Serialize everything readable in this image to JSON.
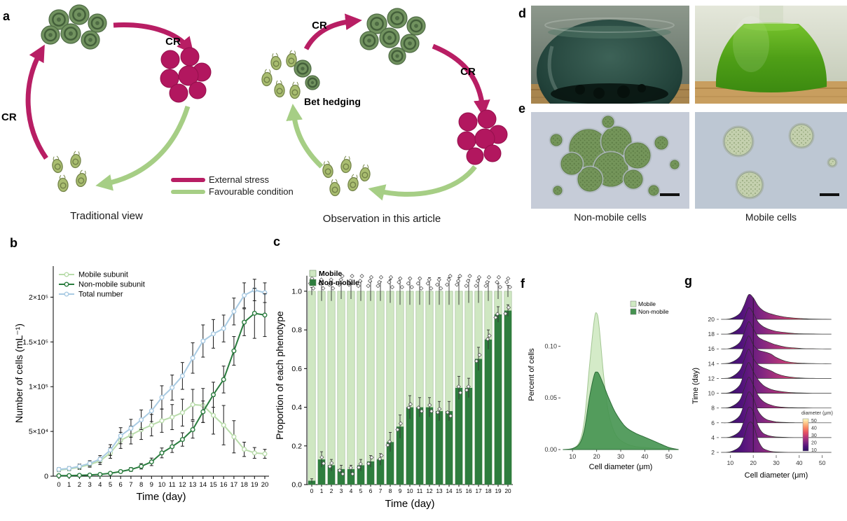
{
  "panels": {
    "a": {
      "label": "a",
      "cr": "CR",
      "bet_hedging": "Bet hedging",
      "legend": {
        "external_stress": {
          "label": "External stress",
          "color": "#b81e64"
        },
        "favourable": {
          "label": "Favourable condition",
          "color": "#a6ce85"
        }
      },
      "captions": {
        "left": "Traditional view",
        "right": "Observation in this article"
      }
    },
    "b": {
      "label": "b"
    },
    "c": {
      "label": "c"
    },
    "d": {
      "label": "d"
    },
    "e": {
      "label": "e",
      "caption_left": "Non-mobile cells",
      "caption_right": "Mobile cells"
    },
    "f": {
      "label": "f"
    },
    "g": {
      "label": "g"
    }
  },
  "chart_data": [
    {
      "id": "b",
      "type": "line",
      "xlabel": "Time (day)",
      "ylabel": "Number of cells (mL⁻¹)",
      "x": [
        0,
        1,
        2,
        3,
        4,
        5,
        6,
        7,
        8,
        9,
        10,
        11,
        12,
        13,
        14,
        15,
        16,
        17,
        18,
        19,
        20
      ],
      "ylim": [
        0,
        230000
      ],
      "yticks": [
        0,
        50000,
        100000,
        150000,
        200000
      ],
      "ytick_labels": [
        "0",
        "5×10⁴",
        "1×10⁵",
        "1.5×10⁵",
        "2×10⁵"
      ],
      "legend_position": "top-left",
      "series": [
        {
          "name": "Mobile subunit",
          "color": "#b9dcab",
          "values": [
            7000,
            8000,
            10000,
            13000,
            17000,
            26000,
            40000,
            46000,
            52000,
            57000,
            62000,
            66000,
            71000,
            80000,
            79000,
            68000,
            57000,
            44000,
            30000,
            26000,
            25000
          ],
          "errors": [
            2000,
            2000,
            2500,
            3000,
            4000,
            6000,
            9000,
            10000,
            11000,
            12000,
            13000,
            14000,
            15000,
            17000,
            19000,
            21000,
            22000,
            18000,
            8000,
            6000,
            5000
          ]
        },
        {
          "name": "Non-mobile subunit",
          "color": "#2a7c3e",
          "values": [
            600,
            700,
            1000,
            1300,
            2000,
            3200,
            5200,
            7500,
            11000,
            16000,
            26000,
            33000,
            41000,
            52000,
            72000,
            91000,
            108000,
            140000,
            172000,
            182000,
            180000
          ],
          "errors": [
            300,
            300,
            400,
            500,
            700,
            1000,
            1600,
            2200,
            3000,
            4200,
            5500,
            6500,
            7500,
            9500,
            12000,
            14000,
            15000,
            16000,
            15000,
            28000,
            24000
          ]
        },
        {
          "name": "Total number",
          "color": "#a9cbe3",
          "values": [
            7600,
            8700,
            11000,
            14300,
            19000,
            29200,
            45200,
            53500,
            63000,
            73000,
            88000,
            99000,
            112000,
            132000,
            151000,
            159000,
            165000,
            184000,
            202000,
            208000,
            205000
          ],
          "errors": [
            2000,
            2000,
            2500,
            3000,
            4000,
            6000,
            9000,
            10000,
            11000,
            12000,
            13000,
            14000,
            15000,
            17000,
            18000,
            16000,
            15000,
            15000,
            14000,
            12000,
            11000
          ]
        }
      ]
    },
    {
      "id": "c",
      "type": "stacked_bar",
      "xlabel": "Time (day)",
      "ylabel": "Proportion of each phenotype",
      "categories": [
        0,
        1,
        2,
        3,
        4,
        5,
        6,
        7,
        8,
        9,
        10,
        11,
        12,
        13,
        14,
        15,
        16,
        17,
        18,
        19,
        20
      ],
      "yticks": [
        0,
        0.2,
        0.4,
        0.6,
        0.8,
        1.0
      ],
      "ytick_labels": [
        "0.0",
        "0.2",
        "0.4",
        "0.6",
        "0.8",
        "1.0"
      ],
      "series": [
        {
          "name": "Mobile",
          "color": "#cfe7c2"
        },
        {
          "name": "Non-mobile",
          "color": "#2e7d3e"
        }
      ],
      "non_mobile_proportion": [
        0.02,
        0.13,
        0.1,
        0.08,
        0.08,
        0.1,
        0.12,
        0.13,
        0.22,
        0.3,
        0.4,
        0.4,
        0.4,
        0.38,
        0.38,
        0.5,
        0.5,
        0.65,
        0.75,
        0.88,
        0.9
      ],
      "boundary_errors": [
        0.01,
        0.04,
        0.03,
        0.02,
        0.02,
        0.03,
        0.03,
        0.03,
        0.05,
        0.06,
        0.06,
        0.05,
        0.05,
        0.05,
        0.05,
        0.06,
        0.05,
        0.06,
        0.05,
        0.04,
        0.03
      ],
      "top_errors": [
        0.02,
        0.05,
        0.05,
        0.04,
        0.04,
        0.05,
        0.05,
        0.05,
        0.06,
        0.07,
        0.07,
        0.07,
        0.07,
        0.07,
        0.07,
        0.07,
        0.06,
        0.06,
        0.05,
        0.04,
        0.03
      ]
    },
    {
      "id": "f",
      "type": "density",
      "xlabel": "Cell diameter (μm)",
      "ylabel": "Percent of cells",
      "xlim": [
        5,
        55
      ],
      "ylim": [
        0,
        0.145
      ],
      "xticks": [
        10,
        20,
        30,
        40,
        50
      ],
      "yticks": [
        0,
        0.05,
        0.1
      ],
      "ytick_labels": [
        "0.00",
        "0.05",
        "0.10"
      ],
      "series": [
        {
          "name": "Mobile",
          "fill": "#cfe9c2",
          "edge": "#a3c693",
          "x": [
            6,
            10,
            13,
            15,
            17,
            19,
            20,
            21,
            23,
            25,
            28,
            32,
            36,
            40,
            45,
            50,
            54
          ],
          "y": [
            0,
            0.001,
            0.008,
            0.03,
            0.08,
            0.125,
            0.132,
            0.12,
            0.07,
            0.035,
            0.014,
            0.006,
            0.003,
            0.002,
            0.001,
            0.0005,
            0
          ]
        },
        {
          "name": "Non-mobile",
          "fill": "#459350",
          "edge": "#2f6e3a",
          "x": [
            6,
            10,
            13,
            15,
            17,
            19,
            20,
            21,
            23,
            25,
            28,
            32,
            36,
            40,
            45,
            50,
            54
          ],
          "y": [
            0,
            0.001,
            0.006,
            0.02,
            0.05,
            0.072,
            0.075,
            0.073,
            0.062,
            0.05,
            0.035,
            0.022,
            0.016,
            0.012,
            0.007,
            0.002,
            0
          ]
        }
      ]
    },
    {
      "id": "g",
      "type": "ridgeline",
      "xlabel": "Cell diameter (μm)",
      "ylabel": "Time (day)",
      "xlim": [
        5,
        55
      ],
      "xticks": [
        10,
        20,
        30,
        40,
        50
      ],
      "median_diameter": 20,
      "x_grid": [
        6,
        10,
        14,
        16,
        18,
        20,
        22,
        24,
        26,
        28,
        30,
        34,
        38,
        42,
        46,
        50,
        54
      ],
      "ridges": [
        {
          "day": 20,
          "density": [
            0,
            0.02,
            0.18,
            0.45,
            0.8,
            0.7,
            0.45,
            0.3,
            0.22,
            0.17,
            0.13,
            0.07,
            0.04,
            0.02,
            0.01,
            0.005,
            0
          ]
        },
        {
          "day": 18,
          "density": [
            0,
            0.02,
            0.2,
            0.5,
            0.85,
            0.68,
            0.4,
            0.26,
            0.18,
            0.13,
            0.09,
            0.05,
            0.02,
            0.01,
            0.005,
            0,
            0
          ]
        },
        {
          "day": 16,
          "density": [
            0,
            0.02,
            0.2,
            0.52,
            0.88,
            0.65,
            0.4,
            0.3,
            0.24,
            0.18,
            0.13,
            0.06,
            0.03,
            0.01,
            0.005,
            0,
            0
          ]
        },
        {
          "day": 14,
          "density": [
            0,
            0.03,
            0.22,
            0.55,
            0.9,
            0.62,
            0.45,
            0.4,
            0.36,
            0.3,
            0.2,
            0.08,
            0.03,
            0.015,
            0.005,
            0,
            0
          ]
        },
        {
          "day": 12,
          "density": [
            0,
            0.03,
            0.25,
            0.6,
            0.95,
            0.65,
            0.45,
            0.36,
            0.3,
            0.24,
            0.16,
            0.07,
            0.03,
            0.01,
            0.005,
            0,
            0
          ]
        },
        {
          "day": 10,
          "density": [
            0,
            0.03,
            0.25,
            0.65,
            1.0,
            0.7,
            0.45,
            0.28,
            0.18,
            0.12,
            0.08,
            0.04,
            0.015,
            0.008,
            0,
            0,
            0
          ]
        },
        {
          "day": 8,
          "density": [
            0,
            0.03,
            0.24,
            0.62,
            1.0,
            0.75,
            0.42,
            0.24,
            0.14,
            0.09,
            0.05,
            0.02,
            0.01,
            0.005,
            0,
            0,
            0
          ]
        },
        {
          "day": 6,
          "density": [
            0,
            0.02,
            0.22,
            0.6,
            1.0,
            0.8,
            0.4,
            0.2,
            0.1,
            0.06,
            0.03,
            0.012,
            0.005,
            0,
            0,
            0,
            0
          ]
        },
        {
          "day": 4,
          "density": [
            0,
            0.02,
            0.2,
            0.55,
            0.98,
            0.85,
            0.4,
            0.16,
            0.08,
            0.04,
            0.02,
            0.008,
            0,
            0,
            0,
            0,
            0
          ]
        },
        {
          "day": 2,
          "density": [
            0,
            0.02,
            0.18,
            0.5,
            0.95,
            0.9,
            0.42,
            0.15,
            0.07,
            0.03,
            0.015,
            0.005,
            0,
            0,
            0,
            0,
            0
          ]
        }
      ],
      "legend": {
        "title": "diameter (μm)",
        "tick_labels": [
          "50",
          "40",
          "30",
          "20",
          "10"
        ]
      },
      "gradient_stops": [
        [
          0,
          "#2c115f"
        ],
        [
          0.2,
          "#51127c"
        ],
        [
          0.38,
          "#822681"
        ],
        [
          0.55,
          "#b73779"
        ],
        [
          0.7,
          "#e55063"
        ],
        [
          0.82,
          "#fb8761"
        ],
        [
          0.92,
          "#fec287"
        ],
        [
          1,
          "#fcfdbf"
        ]
      ]
    }
  ]
}
